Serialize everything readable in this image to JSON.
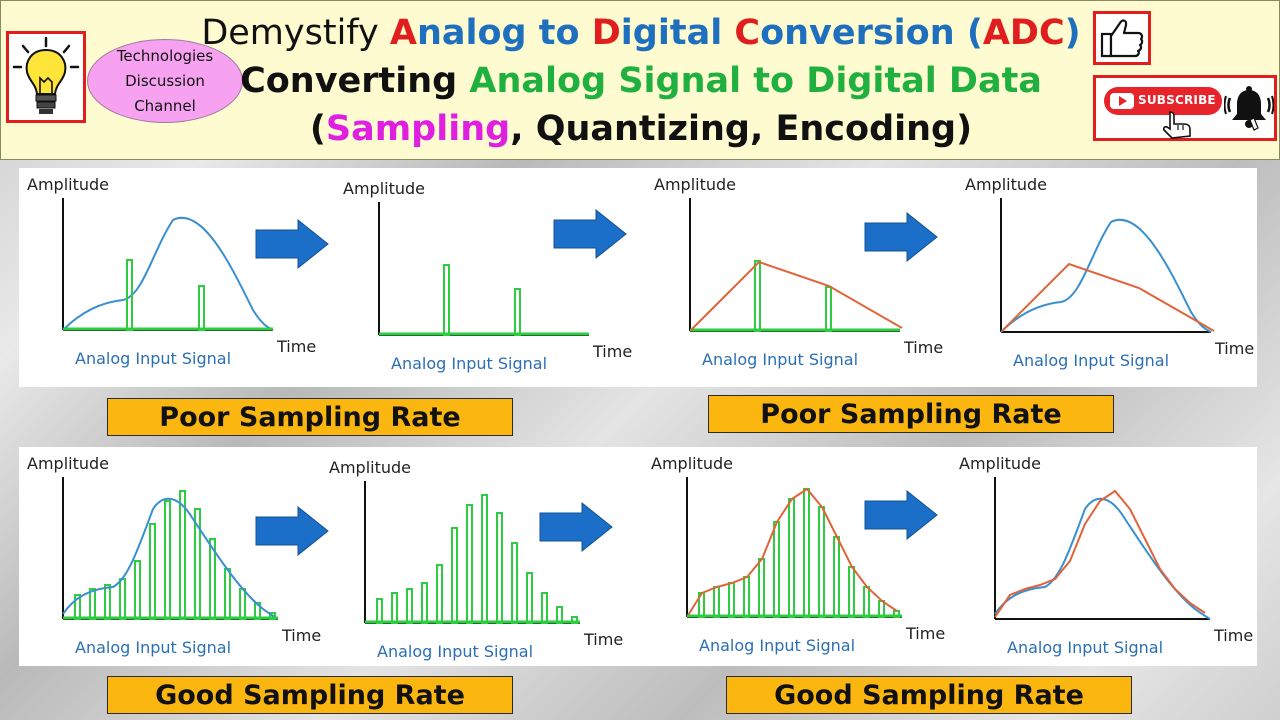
{
  "channel": {
    "line1": "Technologies",
    "line2": "Discussion",
    "line3": "Channel"
  },
  "title": {
    "line1": [
      "Demystify ",
      "A",
      "nalog to ",
      "D",
      "igital ",
      "C",
      "onversion (",
      "ADC",
      ")"
    ],
    "line2": [
      "Converting ",
      "Analog Signal to Digital Data"
    ],
    "line3": [
      "(",
      "Sampling",
      ", Quantizing, Encoding)"
    ]
  },
  "subscribe_label": "SUBSCRIBE",
  "axis": {
    "ylabel": "Amplitude",
    "xlabel": "Time",
    "caption": "Analog Input Signal"
  },
  "rate_labels": {
    "poor_left": "Poor Sampling Rate",
    "poor_right": "Poor Sampling Rate",
    "good_left": "Good Sampling Rate",
    "good_right": "Good Sampling Rate"
  },
  "colors": {
    "header_bg": "#fdfbcf",
    "accent_red": "#e01e1e",
    "title_blue": "#1f6fbf",
    "title_green": "#20b040",
    "title_magenta": "#e020e0",
    "analog_curve": "#3a8fd0",
    "sample_green": "#2ecc40",
    "reconstruct_orange": "#e0643a",
    "arrow_blue": "#1b6fc8",
    "rate_fill": "#fbb70f"
  },
  "icons": [
    "light-bulb-icon",
    "thumbs-up-icon",
    "youtube-play-icon",
    "hand-pointer-icon",
    "bell-icon",
    "right-arrow-icon"
  ]
}
